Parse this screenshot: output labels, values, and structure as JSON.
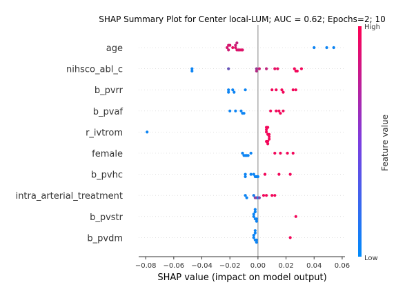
{
  "chart_data": {
    "type": "scatter",
    "subtype": "shap-beeswarm",
    "title": "SHAP Summary Plot for Center local-LUM; AUC = 0.62; Epochs=2; 10",
    "xlabel": "SHAP value (impact on model output)",
    "xlim": [
      -0.085,
      0.062
    ],
    "xticks": [
      -0.08,
      -0.06,
      -0.04,
      -0.02,
      0.0,
      0.02,
      0.04,
      0.06
    ],
    "xtick_labels": [
      "−0.08",
      "−0.06",
      "−0.04",
      "−0.02",
      "0.00",
      "0.02",
      "0.04",
      "0.06"
    ],
    "colorbar": {
      "title": "Feature value",
      "high_label": "High",
      "low_label": "Low",
      "low_color": "#008bfb",
      "high_color": "#ff0052"
    },
    "grid": false,
    "features": [
      {
        "name": "age",
        "points": [
          {
            "x": -0.022,
            "v": 0.85
          },
          {
            "x": -0.021,
            "v": 0.8
          },
          {
            "x": -0.018,
            "v": 0.9
          },
          {
            "x": -0.016,
            "v": 0.85
          },
          {
            "x": -0.015,
            "v": 0.9
          },
          {
            "x": -0.014,
            "v": 0.8
          },
          {
            "x": -0.013,
            "v": 0.85
          },
          {
            "x": -0.012,
            "v": 0.9
          },
          {
            "x": -0.011,
            "v": 0.85
          },
          {
            "x": -0.021,
            "v": 0.8
          },
          {
            "x": -0.016,
            "v": 0.8
          },
          {
            "x": -0.015,
            "v": 0.75
          },
          {
            "x": -0.02,
            "v": 0.85
          },
          {
            "x": 0.04,
            "v": 0.05
          },
          {
            "x": 0.049,
            "v": 0.05
          },
          {
            "x": 0.054,
            "v": 0.05
          }
        ]
      },
      {
        "name": "nihsco_abl_c",
        "points": [
          {
            "x": -0.047,
            "v": 0.05
          },
          {
            "x": -0.047,
            "v": 0.05
          },
          {
            "x": -0.021,
            "v": 0.4
          },
          {
            "x": -0.001,
            "v": 0.6
          },
          {
            "x": -0.001,
            "v": 0.7
          },
          {
            "x": 0.001,
            "v": 0.8
          },
          {
            "x": 0.006,
            "v": 0.75
          },
          {
            "x": 0.012,
            "v": 0.9
          },
          {
            "x": 0.014,
            "v": 0.9
          },
          {
            "x": 0.026,
            "v": 0.95
          },
          {
            "x": 0.027,
            "v": 0.95
          },
          {
            "x": 0.028,
            "v": 0.95
          },
          {
            "x": 0.031,
            "v": 0.95
          }
        ]
      },
      {
        "name": "b_pvrr",
        "points": [
          {
            "x": -0.021,
            "v": 0.05
          },
          {
            "x": -0.021,
            "v": 0.05
          },
          {
            "x": -0.018,
            "v": 0.05
          },
          {
            "x": -0.017,
            "v": 0.05
          },
          {
            "x": -0.009,
            "v": 0.05
          },
          {
            "x": 0.01,
            "v": 0.95
          },
          {
            "x": 0.013,
            "v": 0.95
          },
          {
            "x": 0.017,
            "v": 0.95
          },
          {
            "x": 0.018,
            "v": 0.95
          },
          {
            "x": 0.025,
            "v": 0.95
          },
          {
            "x": 0.027,
            "v": 0.95
          }
        ]
      },
      {
        "name": "b_pvaf",
        "points": [
          {
            "x": -0.02,
            "v": 0.05
          },
          {
            "x": -0.016,
            "v": 0.05
          },
          {
            "x": -0.012,
            "v": 0.05
          },
          {
            "x": -0.011,
            "v": 0.05
          },
          {
            "x": -0.01,
            "v": 0.05
          },
          {
            "x": 0.009,
            "v": 0.95
          },
          {
            "x": 0.013,
            "v": 0.95
          },
          {
            "x": 0.015,
            "v": 0.95
          },
          {
            "x": 0.016,
            "v": 0.95
          },
          {
            "x": 0.018,
            "v": 0.95
          }
        ]
      },
      {
        "name": "r_ivtrom",
        "points": [
          {
            "x": -0.079,
            "v": 0.05
          },
          {
            "x": 0.006,
            "v": 0.95
          },
          {
            "x": 0.007,
            "v": 0.95
          },
          {
            "x": 0.008,
            "v": 0.95
          },
          {
            "x": 0.006,
            "v": 0.95
          },
          {
            "x": 0.007,
            "v": 0.95
          },
          {
            "x": 0.008,
            "v": 0.95
          },
          {
            "x": 0.006,
            "v": 0.95
          },
          {
            "x": 0.007,
            "v": 0.95
          },
          {
            "x": 0.008,
            "v": 0.95
          },
          {
            "x": 0.007,
            "v": 0.95
          },
          {
            "x": 0.006,
            "v": 0.95
          }
        ]
      },
      {
        "name": "female",
        "points": [
          {
            "x": -0.011,
            "v": 0.05
          },
          {
            "x": -0.01,
            "v": 0.05
          },
          {
            "x": -0.009,
            "v": 0.05
          },
          {
            "x": -0.008,
            "v": 0.05
          },
          {
            "x": -0.007,
            "v": 0.05
          },
          {
            "x": -0.005,
            "v": 0.05
          },
          {
            "x": 0.012,
            "v": 0.95
          },
          {
            "x": 0.016,
            "v": 0.95
          },
          {
            "x": 0.021,
            "v": 0.95
          },
          {
            "x": 0.025,
            "v": 0.95
          }
        ]
      },
      {
        "name": "b_pvhc",
        "points": [
          {
            "x": -0.009,
            "v": 0.05
          },
          {
            "x": -0.009,
            "v": 0.05
          },
          {
            "x": -0.005,
            "v": 0.05
          },
          {
            "x": -0.003,
            "v": 0.05
          },
          {
            "x": -0.002,
            "v": 0.05
          },
          {
            "x": -0.001,
            "v": 0.05
          },
          {
            "x": 0.0,
            "v": 0.05
          },
          {
            "x": 0.005,
            "v": 0.95
          },
          {
            "x": 0.015,
            "v": 0.95
          },
          {
            "x": 0.023,
            "v": 0.95
          }
        ]
      },
      {
        "name": "intra_arterial_treatment",
        "points": [
          {
            "x": -0.009,
            "v": 0.05
          },
          {
            "x": -0.008,
            "v": 0.05
          },
          {
            "x": -0.003,
            "v": 0.1
          },
          {
            "x": -0.002,
            "v": 0.5
          },
          {
            "x": -0.001,
            "v": 0.6
          },
          {
            "x": 0.0,
            "v": 0.05
          },
          {
            "x": 0.001,
            "v": 0.5
          },
          {
            "x": 0.004,
            "v": 0.95
          },
          {
            "x": 0.006,
            "v": 0.95
          },
          {
            "x": 0.01,
            "v": 0.95
          },
          {
            "x": 0.012,
            "v": 0.95
          }
        ]
      },
      {
        "name": "b_pvstr",
        "points": [
          {
            "x": -0.003,
            "v": 0.05
          },
          {
            "x": -0.002,
            "v": 0.05
          },
          {
            "x": -0.001,
            "v": 0.05
          },
          {
            "x": -0.003,
            "v": 0.05
          },
          {
            "x": -0.002,
            "v": 0.05
          },
          {
            "x": -0.001,
            "v": 0.05
          },
          {
            "x": -0.002,
            "v": 0.05
          },
          {
            "x": 0.027,
            "v": 0.95
          }
        ]
      },
      {
        "name": "b_pvdm",
        "points": [
          {
            "x": -0.003,
            "v": 0.05
          },
          {
            "x": -0.002,
            "v": 0.05
          },
          {
            "x": -0.001,
            "v": 0.05
          },
          {
            "x": -0.003,
            "v": 0.05
          },
          {
            "x": -0.002,
            "v": 0.05
          },
          {
            "x": -0.001,
            "v": 0.05
          },
          {
            "x": -0.002,
            "v": 0.05
          },
          {
            "x": 0.023,
            "v": 0.95
          }
        ]
      }
    ]
  }
}
